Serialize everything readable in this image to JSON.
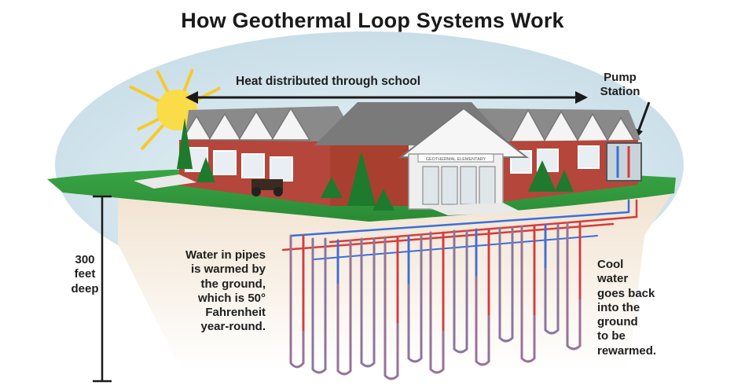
{
  "title": "How Geothermal Loop Systems Work",
  "labels": {
    "heat_distributed": "Heat distributed through school",
    "pump_station": [
      "Pump",
      "Station"
    ],
    "depth": [
      "300",
      "feet",
      "deep"
    ],
    "warm_water": [
      "Water in pipes",
      "is warmed by",
      "the ground,",
      "which is 50°",
      "Fahrenheit",
      "year-round."
    ],
    "cool_water": [
      "Cool",
      "water",
      "goes back",
      "into the",
      "ground",
      "to be",
      "rewarmed."
    ],
    "school_sign": "GEOTHERMAL ELEMENTARY"
  },
  "colors": {
    "sky": "#dbe9ef",
    "grass": "#2f9a3c",
    "soil": "#f3e6d6",
    "brick": "#b8463a",
    "roof": "#7d7d7d",
    "warm_pipe": "#d93a3a",
    "cool_pipe": "#3a6fd9",
    "deep_pipe": "#8b6f9a",
    "sun": "#f7d23a"
  }
}
